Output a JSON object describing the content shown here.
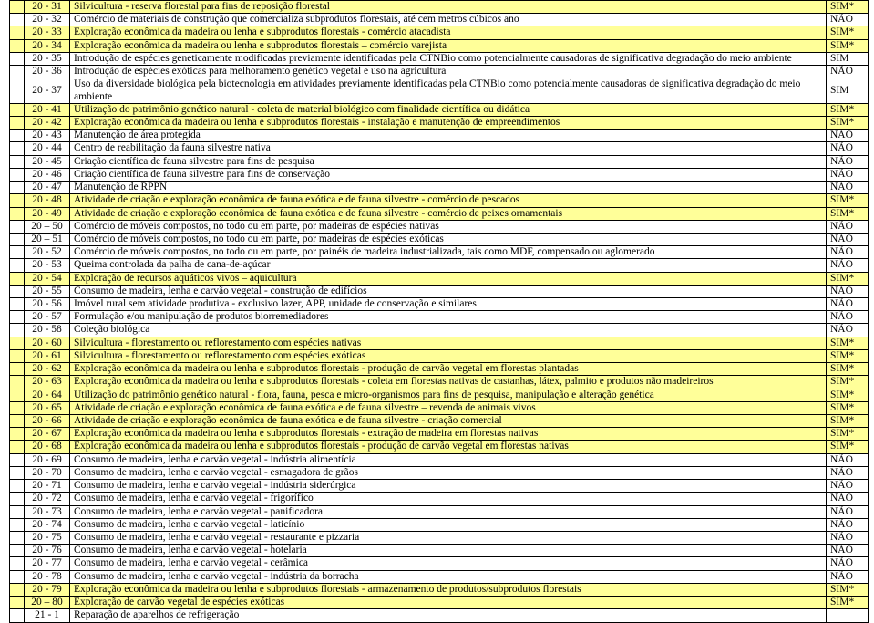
{
  "colors": {
    "highlight_bg": "#ffff99",
    "default_bg": "#ffffff",
    "border": "#000000",
    "text": "#000000"
  },
  "typography": {
    "family": "Times New Roman",
    "size_pt": 9
  },
  "flags": {
    "sim_star": "SIM*",
    "sim": "SIM",
    "nao": "NÃO"
  },
  "columns": [
    "",
    "code",
    "description",
    "flag"
  ],
  "rows": [
    {
      "code": "20 - 31",
      "desc": "Silvicultura - reserva florestal para fins de reposição florestal",
      "flag": "SIM*"
    },
    {
      "code": "20 - 32",
      "desc": "Comércio de materiais de construção que comercializa subprodutos florestais, até cem metros cúbicos ano",
      "flag": "NÃO"
    },
    {
      "code": "20 - 33",
      "desc": "Exploração econômica da madeira ou lenha e subprodutos florestais - comércio atacadista",
      "flag": "SIM*"
    },
    {
      "code": "20 - 34",
      "desc": "Exploração econômica da madeira ou lenha e subprodutos florestais – comércio varejista",
      "flag": "SIM*"
    },
    {
      "code": "20 - 35",
      "desc": "Introdução de espécies geneticamente modificadas previamente identificadas pela CTNBio como potencialmente causadoras de significativa degradação do meio ambiente",
      "flag": "SIM"
    },
    {
      "code": "20 - 36",
      "desc": "Introdução de espécies exóticas para melhoramento genético vegetal e uso na agricultura",
      "flag": "NÃO"
    },
    {
      "code": "20 - 37",
      "desc": "Uso da diversidade biológica pela biotecnologia em atividades previamente identificadas pela CTNBio como potencialmente causadoras de significativa degradação do meio ambiente",
      "flag": "SIM"
    },
    {
      "code": "20 - 41",
      "desc": "Utilização do patrimônio genético natural - coleta de material biológico com finalidade científica ou didática",
      "flag": "SIM*"
    },
    {
      "code": "20 - 42",
      "desc": "Exploração econômica da madeira ou lenha e subprodutos florestais - instalação e manutenção de empreendimentos",
      "flag": "SIM*"
    },
    {
      "code": "20 - 43",
      "desc": "Manutenção de área protegida",
      "flag": "NÃO"
    },
    {
      "code": "20 - 44",
      "desc": "Centro de reabilitação da fauna silvestre nativa",
      "flag": "NÃO"
    },
    {
      "code": "20 - 45",
      "desc": "Criação científica de fauna silvestre para fins de pesquisa",
      "flag": "NÃO"
    },
    {
      "code": "20 - 46",
      "desc": "Criação científica de fauna silvestre para fins de conservação",
      "flag": "NÃO"
    },
    {
      "code": "20 - 47",
      "desc": "Manutenção de RPPN",
      "flag": "NÃO"
    },
    {
      "code": "20 - 48",
      "desc": "Atividade de criação e exploração econômica de fauna exótica e de fauna silvestre - comércio de pescados",
      "flag": "SIM*"
    },
    {
      "code": "20 - 49",
      "desc": "Atividade de criação e exploração econômica de fauna exótica e de fauna silvestre - comércio de peixes ornamentais",
      "flag": "SIM*"
    },
    {
      "code": "20 – 50",
      "desc": "Comércio de móveis compostos, no todo ou em parte, por madeiras de espécies nativas",
      "flag": "NÃO"
    },
    {
      "code": "20 – 51",
      "desc": "Comércio de móveis compostos, no todo ou em parte, por madeiras de espécies exóticas",
      "flag": "NÃO"
    },
    {
      "code": "20 - 52",
      "desc": "Comércio de móveis compostos, no todo ou em parte, por painéis de madeira industrializada, tais como MDF, compensado ou aglomerado",
      "flag": "NÃO"
    },
    {
      "code": "20 - 53",
      "desc": "Queima controlada da palha de cana-de-açúcar",
      "flag": "NÃO"
    },
    {
      "code": "20 - 54",
      "desc": "Exploração de recursos aquáticos vivos – aquicultura",
      "flag": "SIM*"
    },
    {
      "code": "20 - 55",
      "desc": "Consumo de madeira, lenha e carvão vegetal - construção de edifícios",
      "flag": "NÃO"
    },
    {
      "code": "20 - 56",
      "desc": "Imóvel rural sem atividade produtiva - exclusivo lazer, APP, unidade de conservação e similares",
      "flag": "NÃO"
    },
    {
      "code": "20 - 57",
      "desc": "Formulação e/ou manipulação de produtos biorremediadores",
      "flag": "NÃO"
    },
    {
      "code": "20 - 58",
      "desc": "Coleção  biológica",
      "flag": "NÃO"
    },
    {
      "code": "20 - 60",
      "desc": "Silvicultura - florestamento ou reflorestamento com espécies nativas",
      "flag": "SIM*"
    },
    {
      "code": "20 - 61",
      "desc": "Silvicultura - florestamento ou reflorestamento com espécies exóticas",
      "flag": "SIM*"
    },
    {
      "code": "20 - 62",
      "desc": "Exploração econômica da madeira ou lenha e subprodutos florestais - produção de carvão vegetal em florestas plantadas",
      "flag": "SIM*"
    },
    {
      "code": "20 - 63",
      "desc": "Exploração econômica da madeira ou lenha e subprodutos florestais - coleta em florestas nativas de castanhas, látex, palmito e produtos não madeireiros",
      "flag": "SIM*"
    },
    {
      "code": "20 - 64",
      "desc": "Utilização do patrimônio genético natural - flora, fauna, pesca e micro-organismos para fins de pesquisa, manipulação e alteração genética",
      "flag": "SIM*"
    },
    {
      "code": "20 - 65",
      "desc": "Atividade de criação e exploração econômica de fauna exótica e de fauna silvestre – revenda de animais vivos",
      "flag": "SIM*"
    },
    {
      "code": "20 - 66",
      "desc": "Atividade de criação e exploração econômica de fauna exótica e de fauna silvestre - criação comercial",
      "flag": "SIM*"
    },
    {
      "code": "20 - 67",
      "desc": "Exploração econômica da madeira ou lenha e subprodutos florestais - extração de madeira em florestas nativas",
      "flag": "SIM*"
    },
    {
      "code": "20 - 68",
      "desc": "Exploração econômica da madeira ou lenha e subprodutos florestais - produção de carvão vegetal em florestas nativas",
      "flag": "SIM*"
    },
    {
      "code": "20 - 69",
      "desc": "Consumo de madeira, lenha e carvão vegetal - indústria alimentícia",
      "flag": "NÃO"
    },
    {
      "code": "20 - 70",
      "desc": "Consumo de madeira, lenha e carvão vegetal - esmagadora de grãos",
      "flag": "NÃO"
    },
    {
      "code": "20 - 71",
      "desc": "Consumo de madeira, lenha e carvão vegetal - indústria siderúrgica",
      "flag": "NÃO"
    },
    {
      "code": "20 - 72",
      "desc": "Consumo de madeira, lenha e carvão vegetal - frigorífico",
      "flag": "NÃO"
    },
    {
      "code": "20 - 73",
      "desc": "Consumo de madeira, lenha e carvão vegetal - panificadora",
      "flag": "NÃO"
    },
    {
      "code": "20 - 74",
      "desc": "Consumo de madeira, lenha e carvão vegetal - laticínio",
      "flag": "NÃO"
    },
    {
      "code": "20 - 75",
      "desc": "Consumo de madeira, lenha e carvão vegetal - restaurante e pizzaria",
      "flag": "NÃO"
    },
    {
      "code": "20 - 76",
      "desc": "Consumo de madeira, lenha e carvão vegetal - hotelaria",
      "flag": "NÃO"
    },
    {
      "code": "20 - 77",
      "desc": "Consumo de madeira, lenha e carvão vegetal - cerâmica",
      "flag": "NÃO"
    },
    {
      "code": "20 - 78",
      "desc": "Consumo de madeira, lenha e carvão vegetal - indústria da borracha",
      "flag": "NÃO"
    },
    {
      "code": "20 - 79",
      "desc": "Exploração econômica da madeira ou lenha e subprodutos florestais - armazenamento de produtos/subprodutos florestais",
      "flag": "SIM*"
    },
    {
      "code": "20 – 80",
      "desc": "Exploração de carvão vegetal de espécies exóticas",
      "flag": "SIM*"
    },
    {
      "code": "21 - 1",
      "desc": "Reparação de aparelhos de refrigeração",
      "flag": ""
    }
  ]
}
